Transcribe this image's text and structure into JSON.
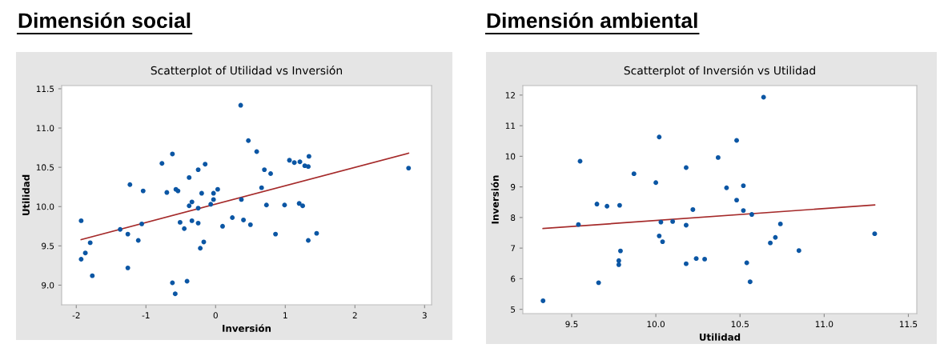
{
  "chart_data": [
    {
      "type": "scatter",
      "title": "Dimensión social",
      "subtitle": "Scatterplot of Utilidad vs Inversión",
      "xlabel": "Inversión",
      "ylabel": "Utilidad",
      "xlim": [
        -2.21,
        3.1
      ],
      "ylim": [
        8.75,
        11.54
      ],
      "xticks": [
        -2,
        -1,
        0,
        1,
        2,
        3
      ],
      "yticks": [
        {
          "value": 9.0,
          "label": "9.0"
        },
        {
          "value": 9.5,
          "label": "9.5"
        },
        {
          "value": 10.0,
          "label": "10.0"
        },
        {
          "value": 10.5,
          "label": "10.5"
        },
        {
          "value": 11.0,
          "label": "11.0"
        },
        {
          "value": 11.5,
          "label": "11.5"
        }
      ],
      "grid": false,
      "legend": false,
      "series": [
        {
          "marker": "circle",
          "color": "#0b56a4",
          "x": [
            -1.93,
            -1.93,
            -1.87,
            -1.8,
            -1.77,
            -1.37,
            -1.26,
            -1.23,
            -1.26,
            -1.11,
            -1.06,
            -1.04,
            -0.77,
            -0.7,
            -0.62,
            -0.62,
            -0.58,
            -0.57,
            -0.54,
            -0.51,
            -0.45,
            -0.41,
            -0.38,
            -0.38,
            -0.34,
            -0.34,
            -0.25,
            -0.25,
            -0.25,
            -0.2,
            -0.22,
            -0.17,
            -0.15,
            -0.07,
            -0.03,
            -0.03,
            0.03,
            0.1,
            0.24,
            0.36,
            0.37,
            0.47,
            0.4,
            0.5,
            0.59,
            0.66,
            0.7,
            0.73,
            0.79,
            0.86,
            0.99,
            1.06,
            1.13,
            1.21,
            1.2,
            1.25,
            1.28,
            1.33,
            1.34,
            1.33,
            1.45,
            2.77
          ],
          "values": [
            9.82,
            9.33,
            9.41,
            9.54,
            9.12,
            9.71,
            9.65,
            10.28,
            9.22,
            9.57,
            9.78,
            10.2,
            10.55,
            10.18,
            10.67,
            9.03,
            8.89,
            10.22,
            10.2,
            9.8,
            9.72,
            9.05,
            10.37,
            10.01,
            10.06,
            9.82,
            9.98,
            9.79,
            10.47,
            10.17,
            9.47,
            9.55,
            10.54,
            10.03,
            10.17,
            10.09,
            10.22,
            9.75,
            9.86,
            11.29,
            10.09,
            10.84,
            9.83,
            9.77,
            10.7,
            10.24,
            10.47,
            10.02,
            10.42,
            9.65,
            10.02,
            10.59,
            10.56,
            10.57,
            10.04,
            10.01,
            10.52,
            10.51,
            10.64,
            9.57,
            9.66,
            10.49
          ]
        },
        {
          "type": "line",
          "color": "#a52a2a",
          "line_style": "solid",
          "x": [
            -1.93,
            2.77
          ],
          "values": [
            9.58,
            10.68
          ]
        }
      ]
    },
    {
      "type": "scatter",
      "title": "Dimensión ambiental",
      "subtitle": "Scatterplot of Inversión vs Utilidad",
      "xlabel": "Utilidad",
      "ylabel": "Inversión",
      "xlim": [
        9.21,
        11.55
      ],
      "ylim": [
        4.86,
        12.31
      ],
      "xticks": [
        {
          "value": 9.5,
          "label": "9.5"
        },
        {
          "value": 10.0,
          "label": "10.0"
        },
        {
          "value": 10.5,
          "label": "10.5"
        },
        {
          "value": 11.0,
          "label": "11.0"
        },
        {
          "value": 11.5,
          "label": "11.5"
        }
      ],
      "yticks": [
        5,
        6,
        7,
        8,
        9,
        10,
        11,
        12
      ],
      "grid": false,
      "legend": false,
      "series": [
        {
          "marker": "circle",
          "color": "#0b56a4",
          "x": [
            9.33,
            9.54,
            9.55,
            9.65,
            9.66,
            9.71,
            9.785,
            9.79,
            9.78,
            9.78,
            9.87,
            10.0,
            10.02,
            10.02,
            10.03,
            10.04,
            10.1,
            10.18,
            10.18,
            10.18,
            10.22,
            10.24,
            10.29,
            10.37,
            10.42,
            10.48,
            10.48,
            10.52,
            10.52,
            10.57,
            10.54,
            10.56,
            10.64,
            10.68,
            10.71,
            10.74,
            10.85,
            11.3
          ],
          "values": [
            5.28,
            7.77,
            9.84,
            8.44,
            5.87,
            8.37,
            8.4,
            6.91,
            6.59,
            6.46,
            9.43,
            9.14,
            10.63,
            7.4,
            7.85,
            7.21,
            7.87,
            9.63,
            7.75,
            6.49,
            8.26,
            6.66,
            6.64,
            9.96,
            8.97,
            10.52,
            8.57,
            9.04,
            8.23,
            8.1,
            6.52,
            5.9,
            11.93,
            7.17,
            7.35,
            7.79,
            6.92,
            7.47
          ]
        },
        {
          "type": "line",
          "color": "#a52a2a",
          "line_style": "solid",
          "x": [
            9.33,
            11.3
          ],
          "values": [
            7.64,
            8.41
          ]
        }
      ]
    }
  ]
}
